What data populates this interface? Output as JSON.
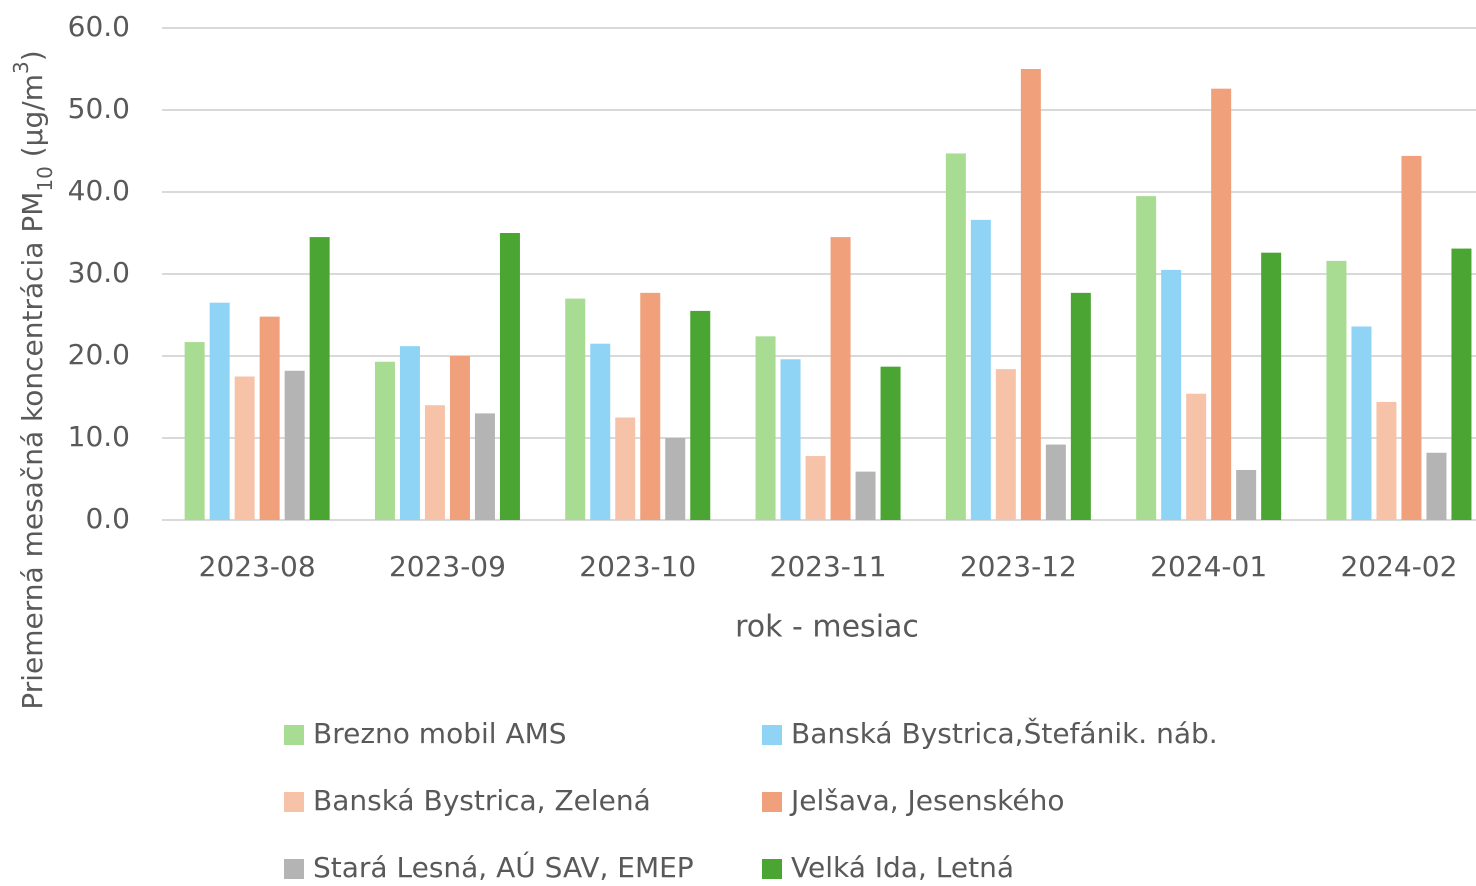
{
  "chart_data": {
    "type": "bar",
    "ylabel": [
      "Priemerná mesačná koncentrácia PM",
      "10",
      " (µg/m",
      "3",
      ")"
    ],
    "xlabel": "rok  - mesiac",
    "categories": [
      "2023-08",
      "2023-09",
      "2023-10",
      "2023-11",
      "2023-12",
      "2024-01",
      "2024-02"
    ],
    "series": [
      {
        "name": "Brezno mobil AMS",
        "color": "#a9dc93",
        "values": [
          21.7,
          19.3,
          27.0,
          22.4,
          44.7,
          39.5,
          31.6
        ]
      },
      {
        "name": "Banská Bystrica,Štefánik. náb.",
        "color": "#8fd3f5",
        "values": [
          26.5,
          21.2,
          21.5,
          19.6,
          36.6,
          30.5,
          23.6
        ]
      },
      {
        "name": "Banská Bystrica, Zelená",
        "color": "#f7c3a8",
        "values": [
          17.5,
          14.0,
          12.5,
          7.8,
          18.4,
          15.4,
          14.4
        ]
      },
      {
        "name": "Jelšava, Jesenského",
        "color": "#f0a07a",
        "values": [
          24.8,
          20.0,
          27.7,
          34.5,
          55.0,
          52.6,
          44.4
        ]
      },
      {
        "name": "Stará Lesná, AÚ SAV, EMEP",
        "color": "#b4b4b4",
        "values": [
          18.2,
          13.0,
          10.0,
          5.9,
          9.2,
          6.1,
          8.2
        ]
      },
      {
        "name": "Velká Ida, Letná",
        "color": "#4aa532",
        "values": [
          34.5,
          35.0,
          25.5,
          18.7,
          27.7,
          32.6,
          33.1
        ]
      }
    ],
    "ylim": [
      0,
      60
    ],
    "yticks": [
      {
        "value": 0,
        "label": "0.0"
      },
      {
        "value": 10,
        "label": "10.0"
      },
      {
        "value": 20,
        "label": "20.0"
      },
      {
        "value": 30,
        "label": "30.0"
      },
      {
        "value": 40,
        "label": "40.0"
      },
      {
        "value": 50,
        "label": "50.0"
      },
      {
        "value": 60,
        "label": "60.0"
      }
    ],
    "grid": true,
    "legend": "bottom"
  }
}
